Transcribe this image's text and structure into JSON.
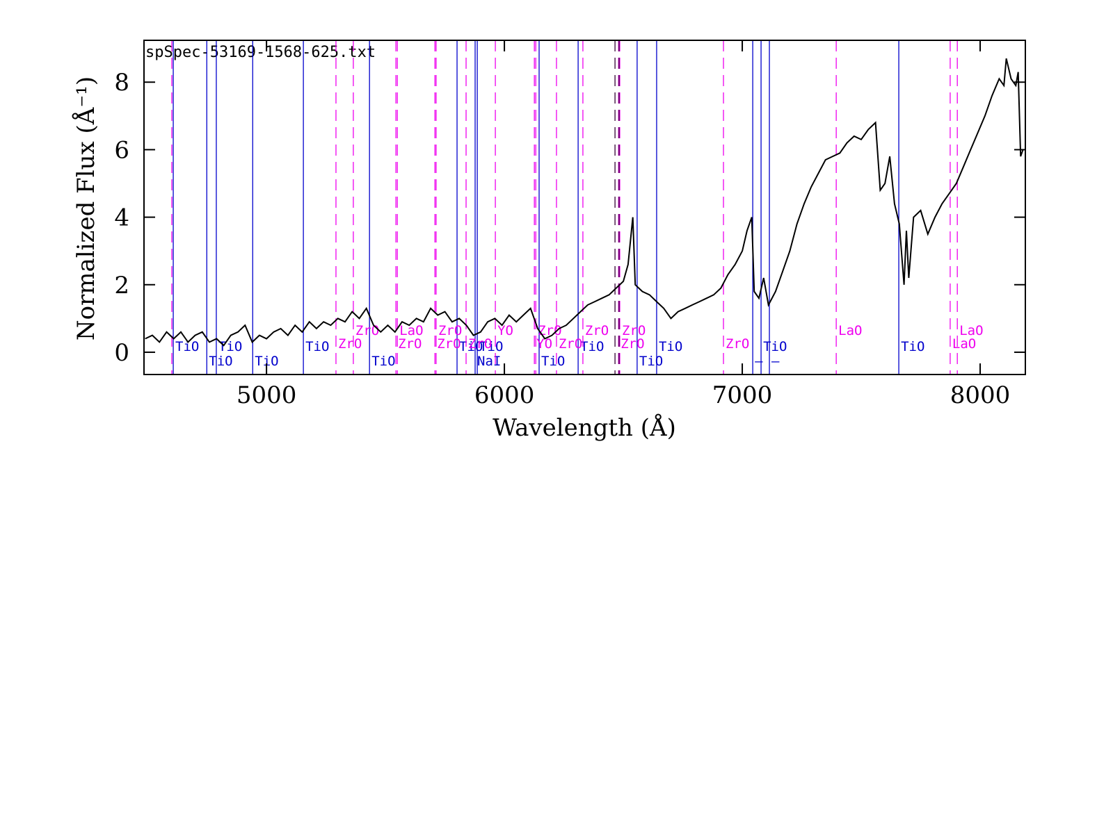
{
  "chart_data": {
    "type": "line",
    "title": "spSpec-53169-1568-625.txt",
    "x_label": "Wavelength (Å)",
    "y_label": "Normalized Flux  (Å⁻¹)",
    "color": "#000000",
    "xlim": [
      4485,
      8190
    ],
    "ylim": [
      -0.66,
      9.24
    ],
    "xticks": [
      5000,
      6000,
      7000,
      8000
    ],
    "yticks": [
      0,
      2,
      4,
      6,
      8
    ],
    "x": [
      4490,
      4520,
      4550,
      4580,
      4610,
      4640,
      4670,
      4700,
      4730,
      4760,
      4790,
      4820,
      4850,
      4880,
      4910,
      4940,
      4970,
      5000,
      5030,
      5060,
      5090,
      5120,
      5150,
      5180,
      5210,
      5240,
      5270,
      5300,
      5330,
      5360,
      5390,
      5420,
      5450,
      5480,
      5510,
      5540,
      5570,
      5600,
      5630,
      5660,
      5690,
      5720,
      5750,
      5780,
      5810,
      5840,
      5870,
      5900,
      5930,
      5960,
      5990,
      6020,
      6050,
      6080,
      6110,
      6140,
      6170,
      6200,
      6230,
      6260,
      6290,
      6320,
      6350,
      6380,
      6410,
      6440,
      6470,
      6500,
      6520,
      6540,
      6550,
      6580,
      6610,
      6640,
      6670,
      6700,
      6730,
      6760,
      6790,
      6820,
      6850,
      6880,
      6910,
      6940,
      6970,
      7000,
      7020,
      7040,
      7050,
      7070,
      7090,
      7110,
      7140,
      7170,
      7200,
      7230,
      7260,
      7290,
      7320,
      7350,
      7380,
      7410,
      7440,
      7470,
      7500,
      7530,
      7560,
      7580,
      7600,
      7620,
      7640,
      7660,
      7680,
      7690,
      7700,
      7720,
      7750,
      7780,
      7810,
      7840,
      7870,
      7900,
      7930,
      7960,
      7990,
      8020,
      8050,
      8080,
      8100,
      8110,
      8130,
      8150,
      8160,
      8170,
      8180
    ],
    "values": [
      0.4,
      0.5,
      0.3,
      0.6,
      0.4,
      0.6,
      0.3,
      0.5,
      0.6,
      0.3,
      0.4,
      0.2,
      0.5,
      0.6,
      0.8,
      0.3,
      0.5,
      0.4,
      0.6,
      0.7,
      0.5,
      0.8,
      0.6,
      0.9,
      0.7,
      0.9,
      0.8,
      1.0,
      0.9,
      1.2,
      1.0,
      1.3,
      0.8,
      0.6,
      0.8,
      0.6,
      0.9,
      0.8,
      1.0,
      0.9,
      1.3,
      1.1,
      1.2,
      0.9,
      1.0,
      0.8,
      0.5,
      0.6,
      0.9,
      1.0,
      0.8,
      1.1,
      0.9,
      1.1,
      1.3,
      0.7,
      0.4,
      0.5,
      0.7,
      0.8,
      1.0,
      1.2,
      1.4,
      1.5,
      1.6,
      1.7,
      1.9,
      2.1,
      2.6,
      4.0,
      2.0,
      1.8,
      1.7,
      1.5,
      1.3,
      1.0,
      1.2,
      1.3,
      1.4,
      1.5,
      1.6,
      1.7,
      1.9,
      2.3,
      2.6,
      3.0,
      3.6,
      4.0,
      1.8,
      1.6,
      2.2,
      1.4,
      1.8,
      2.4,
      3.0,
      3.8,
      4.4,
      4.9,
      5.3,
      5.7,
      5.8,
      5.9,
      6.2,
      6.4,
      6.3,
      6.6,
      6.8,
      4.8,
      5.0,
      5.8,
      4.4,
      3.8,
      2.0,
      3.6,
      2.2,
      4.0,
      4.2,
      3.5,
      4.0,
      4.4,
      4.7,
      5.0,
      5.5,
      6.0,
      6.5,
      7.0,
      7.6,
      8.1,
      7.9,
      8.7,
      8.1,
      7.9,
      8.3,
      5.8,
      6.0
    ],
    "line_marks": [
      {
        "color": "#0000cc",
        "dashed": false,
        "x": [
          4608,
          4749,
          4789,
          4942,
          5155,
          5433,
          5801,
          5877,
          5886,
          6146,
          6310,
          6558,
          6640,
          7044,
          7079,
          7114,
          7658
        ],
        "labels": [
          "TiO",
          "TiO",
          "TiO",
          "TiO",
          "TiO",
          "TiO",
          "TiO",
          "NaI",
          "TiO",
          "TiO",
          "TiO",
          "TiO",
          "TiO",
          "–",
          "TiO",
          "–",
          "TiO"
        ]
      },
      {
        "color": "#ee00ee",
        "dashed": true,
        "x": [
          4602,
          5292,
          5365,
          5544,
          5550,
          5708,
          5713,
          5839,
          5962,
          6126,
          6132,
          6219,
          6330,
          6480,
          6485,
          6921,
          7395,
          7874,
          7904
        ],
        "labels": [
          null,
          "ZrO",
          "ZrO",
          "ZrO",
          "LaO",
          "ZrO",
          "ZrO",
          "ZrO",
          "YO",
          "YO",
          "ZrO",
          "ZrO",
          "ZrO",
          "ZrO",
          "ZrO",
          "ZrO",
          "LaO",
          "LaO",
          "LaO"
        ]
      },
      {
        "color": "#330033",
        "dashed": true,
        "x": [
          6465,
          6482
        ],
        "labels": [
          null,
          null
        ]
      }
    ]
  }
}
